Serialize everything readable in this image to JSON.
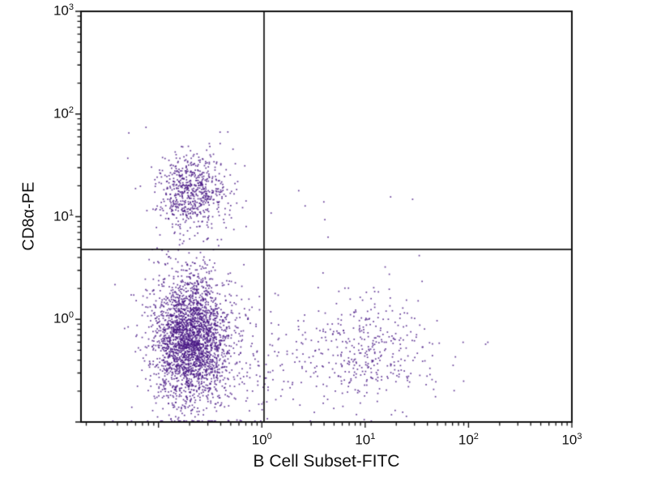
{
  "chart_data": {
    "type": "scatter",
    "title": "",
    "xlabel": "B Cell Subset-FITC",
    "ylabel": "CD8α-PE",
    "x_scale": "log",
    "y_scale": "log",
    "x_log_range": [
      -1.75,
      3
    ],
    "y_log_range": [
      -1,
      3
    ],
    "x_tick_exponents": [
      0,
      1,
      2,
      3
    ],
    "y_tick_exponents": [
      0,
      1,
      2,
      3
    ],
    "tick_base": "10",
    "quadrant_gates": {
      "x_value": 1.05,
      "y_value": 4.8
    },
    "point_color": "#4a1a86",
    "point_alpha": 0.85,
    "point_size": 1.7,
    "frame_color": "#111111",
    "background": "#ffffff",
    "seed": 42,
    "clusters": [
      {
        "name": "upper-left-cd8-core",
        "count": 500,
        "cx": -0.69,
        "sx": 0.16,
        "cy": 1.25,
        "sy": 0.16
      },
      {
        "name": "upper-left-cd8-halo",
        "count": 160,
        "cx": -0.69,
        "sx": 0.24,
        "cy": 1.22,
        "sy": 0.3
      },
      {
        "name": "lower-left-core",
        "count": 2200,
        "cx": -0.69,
        "sx": 0.17,
        "cy": -0.2,
        "sy": 0.28
      },
      {
        "name": "lower-left-halo",
        "count": 550,
        "cx": -0.66,
        "sx": 0.26,
        "cy": -0.2,
        "sy": 0.5
      },
      {
        "name": "lower-right-bcell",
        "count": 360,
        "cx": 1.05,
        "sx": 0.33,
        "cy": -0.28,
        "sy": 0.27
      },
      {
        "name": "lower-middle-bridge",
        "count": 140,
        "cx": 0.1,
        "sx": 0.4,
        "cy": -0.45,
        "sy": 0.3
      },
      {
        "name": "upper-middle-sparse",
        "count": 8,
        "cx": 0.75,
        "sx": 0.35,
        "cy": 1.1,
        "sy": 0.13
      }
    ]
  }
}
